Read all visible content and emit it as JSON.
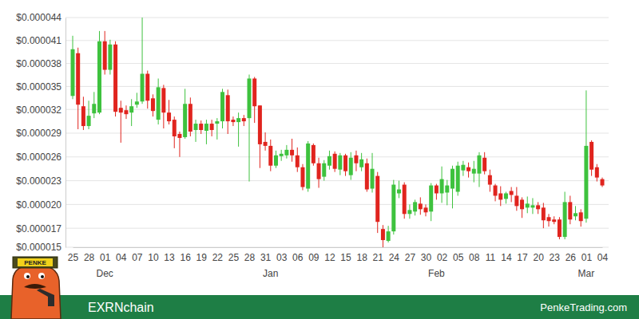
{
  "chart_data": {
    "type": "candlestick",
    "title": "EXRNchain",
    "annotations": [
      "PenkeTrading.com",
      "PENKE"
    ],
    "categories": [
      "25",
      null,
      null,
      "28",
      null,
      null,
      "01",
      null,
      null,
      "04",
      null,
      null,
      "07",
      null,
      null,
      "10",
      null,
      null,
      "13",
      null,
      null,
      "16",
      null,
      null,
      "19",
      null,
      null,
      "22",
      null,
      null,
      "25",
      null,
      null,
      "28",
      null,
      null,
      "31",
      null,
      null,
      "03",
      null,
      null,
      "06",
      null,
      null,
      "09",
      null,
      null,
      "12",
      null,
      null,
      "15",
      null,
      null,
      "18",
      null,
      null,
      "21",
      null,
      null,
      "24",
      null,
      null,
      "27",
      null,
      null,
      "30",
      null,
      null,
      "02",
      null,
      null,
      "05",
      null,
      null,
      "08",
      null,
      null,
      "11",
      null,
      null,
      "14",
      null,
      null,
      "17",
      null,
      null,
      "20",
      null,
      null,
      "23",
      null,
      null,
      "26",
      null,
      null,
      "01",
      null,
      null,
      "04"
    ],
    "months": {
      "index": [
        6,
        37,
        68,
        96
      ],
      "labels": [
        "Dec",
        "Jan",
        "Feb",
        "Mar"
      ]
    },
    "open": [
      3.41e-05,
      3.95e-05,
      3.28e-05,
      3.03e-05,
      3.19e-05,
      3.2e-05,
      4.1e-05,
      3.74e-05,
      4.06e-05,
      3.26e-05,
      3.23e-05,
      3.2e-05,
      3.3e-05,
      3.34e-05,
      3.69e-05,
      3.38e-05,
      3.11e-05,
      3.51e-05,
      3.2e-05,
      3.11e-05,
      2.93e-05,
      2.89e-05,
      3.31e-05,
      2.98e-05,
      3.06e-05,
      2.97e-05,
      3.06e-05,
      3.06e-05,
      3.09e-05,
      3.42e-05,
      3.11e-05,
      3.08e-05,
      3.13e-05,
      3.13e-05,
      3.63e-05,
      3.29e-05,
      2.83e-05,
      2.78e-05,
      2.53e-05,
      2.65e-05,
      2.66e-05,
      2.73e-05,
      2.66e-05,
      2.51e-05,
      2.24e-05,
      2.79e-05,
      2.56e-05,
      2.39e-05,
      2.53e-05,
      2.68e-05,
      2.48e-05,
      2.66e-05,
      2.41e-05,
      2.66e-05,
      2.51e-05,
      2.56e-05,
      2.24e-05,
      2.4e-05,
      1.73e-05,
      1.58e-05,
      1.7e-05,
      2.18e-05,
      2.29e-05,
      1.92e-05,
      1.95e-05,
      2.05e-05,
      2e-05,
      1.95e-05,
      2.28e-05,
      2.18e-05,
      2.19e-05,
      2.24e-05,
      2.2e-05,
      2.47e-05,
      2.51e-05,
      2.43e-05,
      2.43e-05,
      2.63e-05,
      2.41e-05,
      2.28e-05,
      2.18e-05,
      2.11e-05,
      2.21e-05,
      2.15e-05,
      2.1e-05,
      2e-05,
      2e-05,
      2.03e-05,
      2e-05,
      1.88e-05,
      1.85e-05,
      1.85e-05,
      1.63e-05,
      2.07e-05,
      1.89e-05,
      1.94e-05,
      1.86e-05,
      2.83e-05,
      2.51e-05,
      2.36e-05
    ],
    "high": [
      4.17e-05,
      4.02e-05,
      3.4e-05,
      3.35e-05,
      3.46e-05,
      4.23e-05,
      4.23e-05,
      4.12e-05,
      4.1e-05,
      3.35e-05,
      3.29e-05,
      3.37e-05,
      3.45e-05,
      4.4e-05,
      3.73e-05,
      3.43e-05,
      3.63e-05,
      3.55e-05,
      3.36e-05,
      3.15e-05,
      2.96e-05,
      3.5e-05,
      3.39e-05,
      3.11e-05,
      3.1e-05,
      3.11e-05,
      3.11e-05,
      3.13e-05,
      3.5e-05,
      3.49e-05,
      3.15e-05,
      3.2e-05,
      3.17e-05,
      3.68e-05,
      3.65e-05,
      3.29e-05,
      2.95e-05,
      2.86e-05,
      2.72e-05,
      2.73e-05,
      2.79e-05,
      2.87e-05,
      2.76e-05,
      2.55e-05,
      2.84e-05,
      2.81e-05,
      2.63e-05,
      2.6e-05,
      2.72e-05,
      2.71e-05,
      2.69e-05,
      2.68e-05,
      2.7e-05,
      2.72e-05,
      2.69e-05,
      2.62e-05,
      2.69e-05,
      2.45e-05,
      1.78e-05,
      1.77e-05,
      2.35e-05,
      2.34e-05,
      2.32e-05,
      2.04e-05,
      2.1e-05,
      2.13e-05,
      2.04e-05,
      2.31e-05,
      2.3e-05,
      2.52e-05,
      2.35e-05,
      2.53e-05,
      2.58e-05,
      2.59e-05,
      2.57e-05,
      2.59e-05,
      2.7e-05,
      2.7e-05,
      2.48e-05,
      2.3e-05,
      2.27e-05,
      2.2e-05,
      2.26e-05,
      2.26e-05,
      2.13e-05,
      2.14e-05,
      2.12e-05,
      2.07e-05,
      2.06e-05,
      1.92e-05,
      1.89e-05,
      1.88e-05,
      2.2e-05,
      2.15e-05,
      2.02e-05,
      1.98e-05,
      3.48e-05,
      2.85e-05,
      2.55e-05,
      2.38e-05
    ],
    "low": [
      3.37e-05,
      2.99e-05,
      2.98e-05,
      2.99e-05,
      3.13e-05,
      3.18e-05,
      3.68e-05,
      3.68e-05,
      3.15e-05,
      2.82e-05,
      3.12e-05,
      3.03e-05,
      3.26e-05,
      3.31e-05,
      3.25e-05,
      3.15e-05,
      3.05e-05,
      3e-05,
      3.05e-05,
      2.75e-05,
      2.64e-05,
      2.87e-05,
      2.9e-05,
      2.83e-05,
      2.93e-05,
      2.8e-05,
      2.9e-05,
      2.86e-05,
      3e-05,
      2.93e-05,
      3.03e-05,
      2.77e-05,
      3.03e-05,
      2.33e-05,
      3.07e-05,
      2.5e-05,
      2.72e-05,
      2.46e-05,
      2.5e-05,
      2.59e-05,
      2.62e-05,
      2.58e-05,
      2.45e-05,
      2.22e-05,
      2.2e-05,
      2.53e-05,
      2.25e-05,
      2.34e-05,
      2.48e-05,
      2.45e-05,
      2.41e-05,
      2.4e-05,
      2.35e-05,
      2.46e-05,
      2.46e-05,
      2.2e-05,
      2.19e-05,
      1.68e-05,
      1.5e-05,
      1.56e-05,
      1.66e-05,
      2.12e-05,
      1.86e-05,
      1.86e-05,
      1.9e-05,
      1.91e-05,
      1.89e-05,
      1.83e-05,
      2.1e-05,
      2.06e-05,
      2.03e-05,
      1.99e-05,
      2.15e-05,
      2.4e-05,
      2.38e-05,
      2.32e-05,
      2.26e-05,
      2.42e-05,
      2.2e-05,
      2.08e-05,
      2.02e-05,
      2.05e-05,
      2.07e-05,
      1.96e-05,
      1.87e-05,
      1.93e-05,
      1.92e-05,
      1.92e-05,
      1.74e-05,
      1.76e-05,
      1.79e-05,
      1.6e-05,
      1.6e-05,
      1.79e-05,
      1.84e-05,
      1.76e-05,
      1.81e-05,
      2.4e-05,
      2.33e-05,
      2.26e-05
    ],
    "close": [
      4e-05,
      3.3e-05,
      3.03e-05,
      3.16e-05,
      3.31e-05,
      4.1e-05,
      3.74e-05,
      4.06e-05,
      3.21e-05,
      3.2e-05,
      3.18e-05,
      3.28e-05,
      3.34e-05,
      3.69e-05,
      3.35e-05,
      3.22e-05,
      3.52e-05,
      3.2e-05,
      3.09e-05,
      2.9e-05,
      2.88e-05,
      3.31e-05,
      2.96e-05,
      3.06e-05,
      2.98e-05,
      3.06e-05,
      2.98e-05,
      3.09e-05,
      3.46e-05,
      3.09e-05,
      3.08e-05,
      3.13e-05,
      3.09e-05,
      3.63e-05,
      3.28e-05,
      2.8e-05,
      2.78e-05,
      2.53e-05,
      2.66e-05,
      2.68e-05,
      2.73e-05,
      2.66e-05,
      2.51e-05,
      2.26e-05,
      2.81e-05,
      2.56e-05,
      2.36e-05,
      2.56e-05,
      2.65e-05,
      2.49e-05,
      2.66e-05,
      2.46e-05,
      2.63e-05,
      2.56e-05,
      2.61e-05,
      2.23e-05,
      2.49e-05,
      1.82e-05,
      1.59e-05,
      1.7e-05,
      2.29e-05,
      2.23e-05,
      1.92e-05,
      1.97e-05,
      2.07e-05,
      1.98e-05,
      1.94e-05,
      2.28e-05,
      2.18e-05,
      2.36e-05,
      2.28e-05,
      2.49e-05,
      2.53e-05,
      2.54e-05,
      2.46e-05,
      2.49e-05,
      2.66e-05,
      2.46e-05,
      2.29e-05,
      2.15e-05,
      2.1e-05,
      2.18e-05,
      2.16e-05,
      2.02e-05,
      1.98e-05,
      2.05e-05,
      2.03e-05,
      1.98e-05,
      1.84e-05,
      1.83e-05,
      1.82e-05,
      1.63e-05,
      2.07e-05,
      1.85e-05,
      1.93e-05,
      1.83e-05,
      2.78e-05,
      2.48e-05,
      2.38e-05,
      2.28e-05
    ],
    "ylim": [
      1.5e-05,
      4.4e-05
    ],
    "yticks": [
      {
        "value": 1.5e-05,
        "label": "$0.000015"
      },
      {
        "value": 1.74e-05,
        "label": "$0.000017"
      },
      {
        "value": 2.04e-05,
        "label": "$0.000020"
      },
      {
        "value": 2.34e-05,
        "label": "$0.000023"
      },
      {
        "value": 2.64e-05,
        "label": "$0.000026"
      },
      {
        "value": 2.94e-05,
        "label": "$0.000029"
      },
      {
        "value": 3.24e-05,
        "label": "$0.000032"
      },
      {
        "value": 3.53e-05,
        "label": "$0.000035"
      },
      {
        "value": 3.82e-05,
        "label": "$0.000038"
      },
      {
        "value": 4.11e-05,
        "label": "$0.000041"
      },
      {
        "value": 4.4e-05,
        "label": "$0.000044"
      }
    ],
    "grid": true
  }
}
